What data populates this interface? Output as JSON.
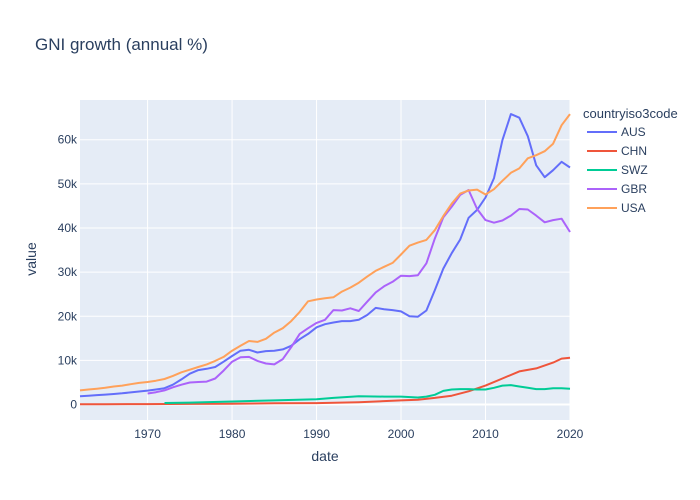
{
  "chart_data": {
    "type": "line",
    "title": "GNI growth (annual %)",
    "xlabel": "date",
    "ylabel": "value",
    "legend_title": "countryiso3code",
    "legend_position": "top-right",
    "grid": true,
    "xlim": [
      1962,
      2020
    ],
    "ylim": [
      -3500,
      69000
    ],
    "x_ticks": [
      1970,
      1980,
      1990,
      2000,
      2010,
      2020
    ],
    "y_ticks": [
      0,
      10000,
      20000,
      30000,
      40000,
      50000,
      60000
    ],
    "y_tick_labels": [
      "0",
      "10k",
      "20k",
      "30k",
      "40k",
      "50k",
      "60k"
    ],
    "colors": {
      "AUS": "#636efa",
      "CHN": "#ef553b",
      "SWZ": "#00cc96",
      "GBR": "#ab63fa",
      "USA": "#ffa15a",
      "background": "#e5ecf6",
      "grid": "#ffffff",
      "text": "#2a3f5f"
    },
    "series": [
      {
        "name": "AUS",
        "x": [
          1962,
          1963,
          1964,
          1965,
          1966,
          1967,
          1968,
          1969,
          1970,
          1971,
          1972,
          1973,
          1974,
          1975,
          1976,
          1977,
          1978,
          1979,
          1980,
          1981,
          1982,
          1983,
          1984,
          1985,
          1986,
          1987,
          1988,
          1989,
          1990,
          1991,
          1992,
          1993,
          1994,
          1995,
          1996,
          1997,
          1998,
          1999,
          2000,
          2001,
          2002,
          2003,
          2004,
          2005,
          2006,
          2007,
          2008,
          2009,
          2010,
          2011,
          2012,
          2013,
          2014,
          2015,
          2016,
          2017,
          2018,
          2019,
          2020
        ],
        "y": [
          1900,
          2000,
          2150,
          2250,
          2400,
          2550,
          2750,
          2950,
          3150,
          3400,
          3700,
          4500,
          5700,
          7000,
          7800,
          8100,
          8500,
          9700,
          11000,
          12200,
          12400,
          11800,
          12100,
          12200,
          12500,
          13300,
          14800,
          16000,
          17500,
          18200,
          18600,
          18900,
          18900,
          19200,
          20300,
          21900,
          21600,
          21400,
          21100,
          20000,
          19900,
          21300,
          25900,
          30800,
          34300,
          37400,
          42300,
          44100,
          46900,
          51300,
          59900,
          65800,
          65000,
          60800,
          54200,
          51500,
          53100,
          55000,
          53700
        ]
      },
      {
        "name": "CHN",
        "x": [
          1962,
          1965,
          1970,
          1975,
          1980,
          1985,
          1990,
          1995,
          2000,
          2002,
          2004,
          2006,
          2008,
          2010,
          2012,
          2014,
          2016,
          2018,
          2019,
          2020
        ],
        "y": [
          80,
          90,
          110,
          150,
          200,
          290,
          330,
          530,
          930,
          1100,
          1500,
          2000,
          3000,
          4300,
          5900,
          7500,
          8200,
          9500,
          10400,
          10600
        ]
      },
      {
        "name": "SWZ",
        "x": [
          1972,
          1975,
          1980,
          1985,
          1990,
          1992,
          1995,
          1998,
          2000,
          2002,
          2003,
          2004,
          2005,
          2006,
          2007,
          2008,
          2009,
          2010,
          2011,
          2012,
          2013,
          2014,
          2015,
          2016,
          2017,
          2018,
          2019,
          2020
        ],
        "y": [
          350,
          450,
          700,
          950,
          1200,
          1500,
          1900,
          1800,
          1800,
          1600,
          1800,
          2200,
          3100,
          3400,
          3500,
          3500,
          3400,
          3400,
          3800,
          4300,
          4400,
          4100,
          3800,
          3500,
          3500,
          3700,
          3700,
          3600
        ]
      },
      {
        "name": "GBR",
        "x": [
          1970,
          1971,
          1972,
          1973,
          1974,
          1975,
          1976,
          1977,
          1978,
          1979,
          1980,
          1981,
          1982,
          1983,
          1984,
          1985,
          1986,
          1987,
          1988,
          1989,
          1990,
          1991,
          1992,
          1993,
          1994,
          1995,
          1996,
          1997,
          1998,
          1999,
          2000,
          2001,
          2002,
          2003,
          2004,
          2005,
          2006,
          2007,
          2008,
          2009,
          2010,
          2011,
          2012,
          2013,
          2014,
          2015,
          2016,
          2017,
          2018,
          2019,
          2020
        ],
        "y": [
          2500,
          2800,
          3200,
          3900,
          4500,
          5000,
          5100,
          5200,
          5900,
          7700,
          9700,
          10700,
          10800,
          9900,
          9300,
          9100,
          10300,
          13000,
          16000,
          17300,
          18500,
          19200,
          21400,
          21300,
          21800,
          21200,
          23300,
          25400,
          26800,
          27800,
          29200,
          29100,
          29300,
          32000,
          37600,
          42400,
          44800,
          47500,
          48600,
          44300,
          41800,
          41200,
          41700,
          42800,
          44300,
          44200,
          42800,
          41300,
          41800,
          42100,
          39100
        ]
      },
      {
        "name": "USA",
        "x": [
          1962,
          1963,
          1964,
          1965,
          1966,
          1967,
          1968,
          1969,
          1970,
          1971,
          1972,
          1973,
          1974,
          1975,
          1976,
          1977,
          1978,
          1979,
          1980,
          1981,
          1982,
          1983,
          1984,
          1985,
          1986,
          1987,
          1988,
          1989,
          1990,
          1991,
          1992,
          1993,
          1994,
          1995,
          1996,
          1997,
          1998,
          1999,
          2000,
          2001,
          2002,
          2003,
          2004,
          2005,
          2006,
          2007,
          2008,
          2009,
          2010,
          2011,
          2012,
          2013,
          2014,
          2015,
          2016,
          2017,
          2018,
          2019,
          2020
        ],
        "y": [
          3200,
          3400,
          3600,
          3800,
          4100,
          4300,
          4600,
          4900,
          5100,
          5400,
          5800,
          6500,
          7300,
          7900,
          8500,
          9100,
          9900,
          10800,
          12200,
          13300,
          14400,
          14200,
          14900,
          16300,
          17300,
          18900,
          21000,
          23400,
          23800,
          24100,
          24300,
          25600,
          26500,
          27600,
          29000,
          30300,
          31200,
          32100,
          34000,
          36000,
          36700,
          37300,
          39500,
          42700,
          45500,
          47800,
          48500,
          48700,
          47600,
          48800,
          50700,
          52500,
          53500,
          55800,
          56500,
          57400,
          59100,
          63300,
          65800
        ]
      }
    ]
  }
}
